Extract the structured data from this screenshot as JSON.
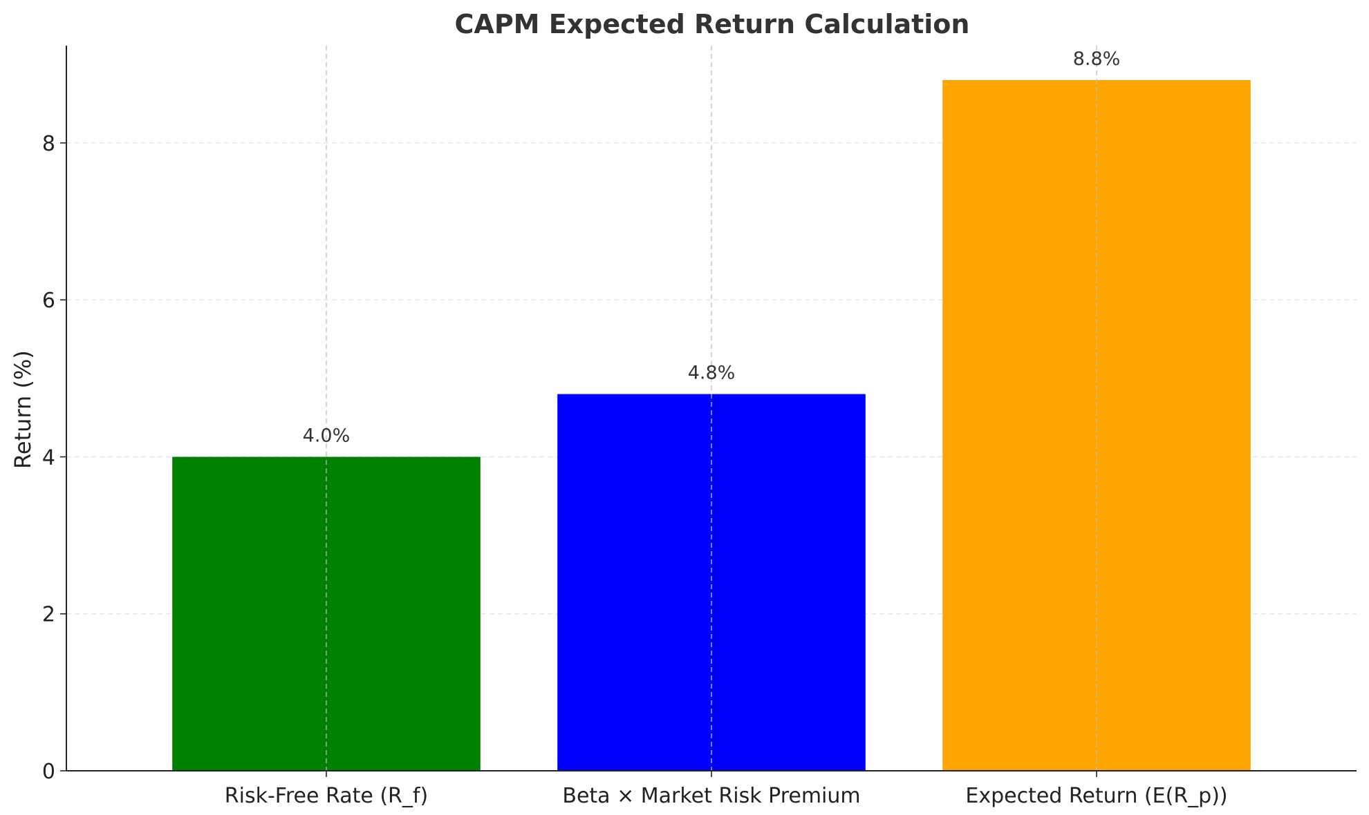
{
  "chart_data": {
    "type": "bar",
    "title": "CAPM Expected Return Calculation",
    "xlabel": "",
    "ylabel": "Return (%)",
    "categories": [
      "Risk-Free Rate (R_f)",
      "Beta × Market Risk Premium",
      "Expected Return (E(R_p))"
    ],
    "values": [
      4.0,
      4.8,
      8.8
    ],
    "value_labels": [
      "4.0%",
      "4.8%",
      "8.8%"
    ],
    "colors": [
      "#008000",
      "#0000ff",
      "#ffa500"
    ],
    "ylim": [
      0,
      9.24
    ],
    "yticks": [
      0,
      2,
      4,
      6,
      8
    ],
    "grid": true
  }
}
